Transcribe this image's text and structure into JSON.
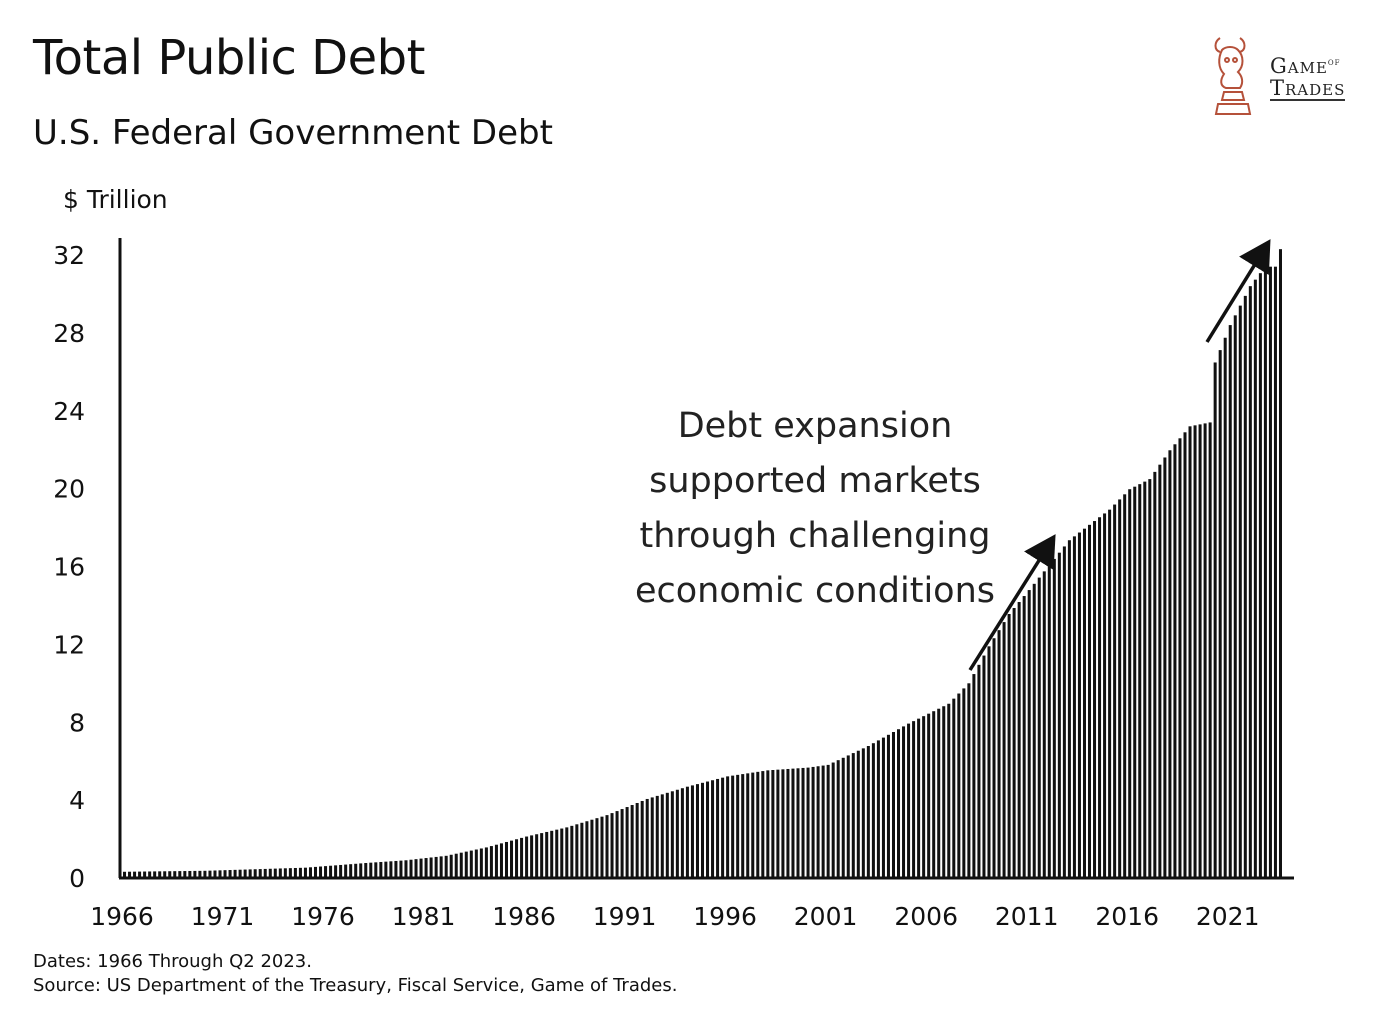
{
  "title": "Total Public Debt",
  "subtitle": "U.S. Federal Government Debt",
  "logo": {
    "line1": "Game",
    "line1_small": "of",
    "line2": "Trades",
    "icon": "bull-chess-knight-icon",
    "color": "#c0392b"
  },
  "footnotes": {
    "dates": "Dates: 1966 Through Q2 2023.",
    "source": "Source: US Department of the Treasury, Fiscal Service, Game of Trades."
  },
  "chart_data": {
    "type": "bar",
    "ylabel": "$ Trillion",
    "ylim": [
      0,
      32
    ],
    "yticks": [
      0,
      4,
      8,
      12,
      16,
      20,
      24,
      28,
      32
    ],
    "xticks": [
      "1966",
      "1971",
      "1976",
      "1981",
      "1986",
      "1991",
      "1996",
      "2001",
      "2006",
      "2011",
      "2016",
      "2021"
    ],
    "x_start": 1966,
    "periods_per_year": 4,
    "grid": false,
    "annotation": [
      "Debt expansion",
      "supported markets",
      "through challenging",
      "economic conditions"
    ],
    "arrows": [
      "upward arrow 2008-2012",
      "upward arrow 2020-2023"
    ],
    "anchor_points": [
      [
        1966.0,
        0.32
      ],
      [
        1970.0,
        0.37
      ],
      [
        1975.0,
        0.53
      ],
      [
        1978.0,
        0.77
      ],
      [
        1980.0,
        0.91
      ],
      [
        1982.0,
        1.14
      ],
      [
        1984.0,
        1.57
      ],
      [
        1986.0,
        2.13
      ],
      [
        1988.0,
        2.6
      ],
      [
        1990.0,
        3.23
      ],
      [
        1992.0,
        4.06
      ],
      [
        1994.0,
        4.69
      ],
      [
        1996.0,
        5.22
      ],
      [
        1998.0,
        5.53
      ],
      [
        2000.0,
        5.67
      ],
      [
        2001.0,
        5.81
      ],
      [
        2003.0,
        6.78
      ],
      [
        2005.0,
        7.93
      ],
      [
        2007.0,
        8.95
      ],
      [
        2008.0,
        10.0
      ],
      [
        2009.0,
        11.9
      ],
      [
        2010.0,
        13.56
      ],
      [
        2011.0,
        14.79
      ],
      [
        2012.0,
        16.07
      ],
      [
        2013.0,
        17.35
      ],
      [
        2014.0,
        18.14
      ],
      [
        2015.0,
        18.92
      ],
      [
        2016.0,
        19.97
      ],
      [
        2017.0,
        20.49
      ],
      [
        2018.0,
        21.97
      ],
      [
        2019.0,
        23.2
      ],
      [
        2020.0,
        23.4
      ],
      [
        2020.25,
        26.48
      ],
      [
        2020.75,
        27.75
      ],
      [
        2021.0,
        28.4
      ],
      [
        2022.0,
        30.4
      ],
      [
        2022.75,
        31.4
      ],
      [
        2023.25,
        31.4
      ],
      [
        2023.5,
        32.3
      ]
    ],
    "color": "#111111"
  }
}
